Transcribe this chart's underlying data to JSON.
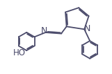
{
  "background_color": "#ffffff",
  "line_color": "#4a4a6a",
  "line_width": 1.3,
  "font_size": 8.5,
  "label_color": "#4a4a6a",
  "HO_label": "HO",
  "N_label": "N",
  "figsize": [
    1.61,
    1.07
  ],
  "dpi": 100,
  "xlim": [
    0,
    10
  ],
  "ylim": [
    0,
    6.6
  ]
}
